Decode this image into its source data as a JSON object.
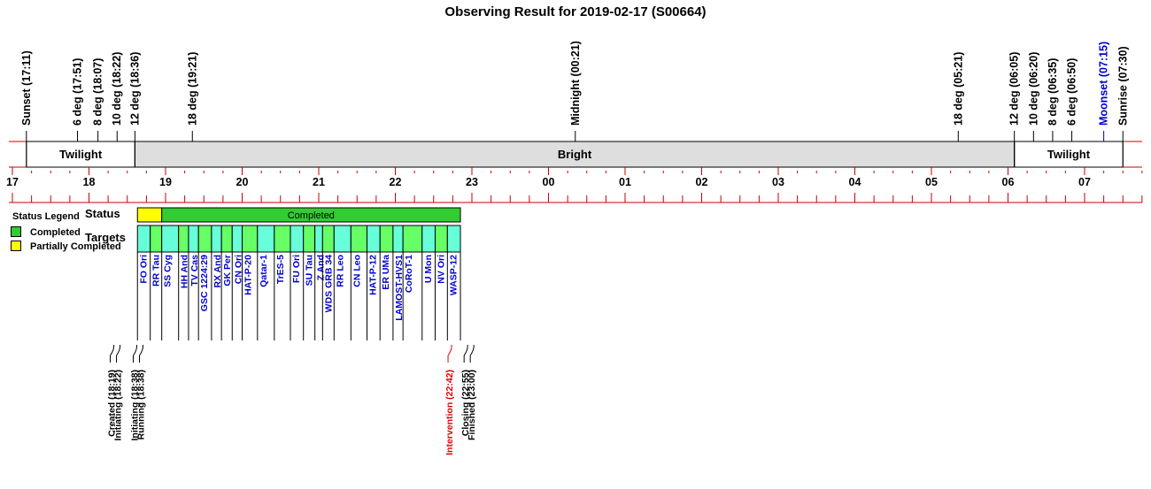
{
  "title": "Observing Result for 2019-02-17 (S00664)",
  "colors": {
    "completed": "#33cc33",
    "partially_completed": "#ffff00",
    "target_a": "#66ff66",
    "target_b": "#66ffd9",
    "bright_band": "#dedede",
    "axis_red": "#cc0000",
    "moon_blue": "#0000cc",
    "target_text": "#0000cc",
    "intervention_red": "#dd0000"
  },
  "legend": {
    "title": "Status Legend",
    "items": [
      {
        "label": "Completed",
        "color": "#33cc33"
      },
      {
        "label": "Partially Completed",
        "color": "#ffff00"
      }
    ]
  },
  "row_labels": {
    "status": "Status",
    "targets": "Targets"
  },
  "chart_data": {
    "type": "timeline",
    "title": "Observing Result for 2019-02-17 (S00664)",
    "time_axis": {
      "start_hour": 17.0,
      "end_hour": 31.8,
      "tick_labels": [
        "17",
        "18",
        "19",
        "20",
        "21",
        "22",
        "23",
        "00",
        "01",
        "02",
        "03",
        "04",
        "05",
        "06",
        "07"
      ]
    },
    "events": [
      {
        "label": "Sunset (17:11)",
        "hour": 17.183,
        "kind": "sun"
      },
      {
        "label": "6 deg (17:51)",
        "hour": 17.85,
        "kind": "twilight"
      },
      {
        "label": "8 deg (18:07)",
        "hour": 18.117,
        "kind": "twilight"
      },
      {
        "label": "10 deg (18:22)",
        "hour": 18.367,
        "kind": "twilight"
      },
      {
        "label": "12 deg (18:36)",
        "hour": 18.6,
        "kind": "twilight"
      },
      {
        "label": "18 deg (19:21)",
        "hour": 19.35,
        "kind": "twilight"
      },
      {
        "label": "Midnight (00:21)",
        "hour": 24.35,
        "kind": "midnight"
      },
      {
        "label": "18 deg (05:21)",
        "hour": 29.35,
        "kind": "twilight"
      },
      {
        "label": "12 deg (06:05)",
        "hour": 30.083,
        "kind": "twilight"
      },
      {
        "label": "10 deg (06:20)",
        "hour": 30.333,
        "kind": "twilight"
      },
      {
        "label": "8 deg (06:35)",
        "hour": 30.583,
        "kind": "twilight"
      },
      {
        "label": "6 deg (06:50)",
        "hour": 30.833,
        "kind": "twilight"
      },
      {
        "label": "Moonset (07:15)",
        "hour": 31.25,
        "kind": "moon"
      },
      {
        "label": "Sunrise (07:30)",
        "hour": 31.5,
        "kind": "sun"
      }
    ],
    "bands": [
      {
        "label": "Twilight",
        "start": 17.183,
        "end": 18.6,
        "fill": "#ffffff"
      },
      {
        "label": "Bright",
        "start": 18.6,
        "end": 30.083,
        "fill": "#dedede"
      },
      {
        "label": "Twilight",
        "start": 30.083,
        "end": 31.5,
        "fill": "#ffffff"
      }
    ],
    "status": [
      {
        "label": "",
        "start": 18.633,
        "end": 18.95,
        "state": "Partially Completed"
      },
      {
        "label": "Completed",
        "start": 18.95,
        "end": 22.85,
        "state": "Completed"
      }
    ],
    "targets": [
      {
        "name": "FO Ori",
        "start": 18.633,
        "end": 18.8
      },
      {
        "name": "RR Tau",
        "start": 18.8,
        "end": 18.95
      },
      {
        "name": "SS Cyg",
        "start": 18.95,
        "end": 19.17
      },
      {
        "name": "HH And",
        "start": 19.17,
        "end": 19.3
      },
      {
        "name": "TV Cas",
        "start": 19.3,
        "end": 19.43
      },
      {
        "name": "GSC 1224:29",
        "start": 19.43,
        "end": 19.6
      },
      {
        "name": "RX And",
        "start": 19.6,
        "end": 19.73
      },
      {
        "name": "GK Per",
        "start": 19.73,
        "end": 19.87
      },
      {
        "name": "CN Ori",
        "start": 19.87,
        "end": 20.0
      },
      {
        "name": "HAT-P-20",
        "start": 20.0,
        "end": 20.2
      },
      {
        "name": "Qatar-1",
        "start": 20.2,
        "end": 20.42
      },
      {
        "name": "TrES-5",
        "start": 20.42,
        "end": 20.63
      },
      {
        "name": "FU Ori",
        "start": 20.63,
        "end": 20.8
      },
      {
        "name": "SU Tau",
        "start": 20.8,
        "end": 20.95
      },
      {
        "name": "Z And",
        "start": 20.95,
        "end": 21.05
      },
      {
        "name": "WDS GRB 34",
        "start": 21.05,
        "end": 21.2
      },
      {
        "name": "RR Leo",
        "start": 21.2,
        "end": 21.42
      },
      {
        "name": "CN Leo",
        "start": 21.42,
        "end": 21.63
      },
      {
        "name": "HAT-P-12",
        "start": 21.63,
        "end": 21.8
      },
      {
        "name": "ER UMa",
        "start": 21.8,
        "end": 21.97
      },
      {
        "name": "LAMOST-HVS1",
        "start": 21.97,
        "end": 22.1
      },
      {
        "name": "CoRoT-1",
        "start": 22.1,
        "end": 22.35
      },
      {
        "name": "U Mon",
        "start": 22.35,
        "end": 22.52
      },
      {
        "name": "NV Ori",
        "start": 22.52,
        "end": 22.68
      },
      {
        "name": "WASP-12",
        "start": 22.68,
        "end": 22.85
      }
    ],
    "log_groups": [
      {
        "hour": 18.33,
        "lines": [
          {
            "text": "Created (18:19)",
            "color": "#000000"
          },
          {
            "text": "Initiating (18:22)",
            "color": "#000000"
          }
        ]
      },
      {
        "hour": 18.63,
        "lines": [
          {
            "text": "Initiating (18:38)",
            "color": "#000000"
          },
          {
            "text": "Running (18:38)",
            "color": "#000000"
          }
        ]
      },
      {
        "hour": 22.7,
        "lines": [
          {
            "text": "Intervention (22:42)",
            "color": "#dd0000"
          }
        ]
      },
      {
        "hour": 22.95,
        "lines": [
          {
            "text": "Closing (22:55)",
            "color": "#000000"
          },
          {
            "text": "Finished (23:00)",
            "color": "#000000"
          }
        ]
      }
    ]
  }
}
